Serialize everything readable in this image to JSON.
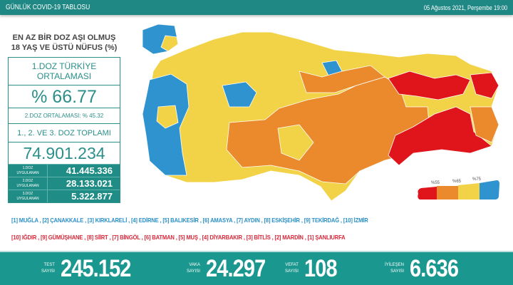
{
  "header": {
    "title": "GÜNLÜK COVID-19 TABLOSU",
    "date": "05 Ağustos 2021, Perşembe 19:00"
  },
  "left": {
    "title_line1": "EN AZ BİR DOZ AŞI OLMUŞ",
    "title_line2": "18 YAŞ VE ÜSTÜ NÜFUS (%)",
    "avg_label_line1": "1.DOZ TÜRKİYE",
    "avg_label_line2": "ORTALAMASI",
    "avg_value": "% 66.77",
    "second_avg": "2.DOZ ORTALAMASI: % 45.32",
    "total_label": "1., 2. VE 3. DOZ TOPLAMI",
    "total_value": "74.901.234",
    "doses": [
      {
        "label1": "1.DOZ",
        "label2": "UYGULANAN",
        "value": "41.445.336"
      },
      {
        "label1": "2.DOZ",
        "label2": "UYGULANAN",
        "value": "28.133.021"
      },
      {
        "label1": "3.DOZ",
        "label2": "UYGULANAN",
        "value": "5.322.877"
      }
    ]
  },
  "legend": {
    "thresholds": [
      "%55",
      "%65",
      "%75"
    ],
    "colors": [
      "#e0151b",
      "#ea8a2c",
      "#f2d347",
      "#2f93cf"
    ]
  },
  "lists": {
    "top": "[1] MUĞLA , [2] ÇANAKKALE , [3] KIRKLARELİ , [4] EDİRNE , [5] BALIKESİR , [6] AMASYA , [7] AYDIN , [8] ESKİŞEHİR , [9] TEKİRDAĞ , [10] İZMİR",
    "bottom": "[10] IĞDIR , [9] GÜMÜŞHANE , [8] SİİRT , [7] BİNGÖL , [6] BATMAN , [5] MUŞ , [4] DİYARBAKIR , [3] BİTLİS , [2] MARDİN , [1] ŞANLIURFA"
  },
  "stats": [
    {
      "label1": "TEST",
      "label2": "SAYISI",
      "value": "245.152"
    },
    {
      "label1": "VAKA",
      "label2": "SAYISI",
      "value": "24.297"
    },
    {
      "label1": "VEFAT",
      "label2": "SAYISI",
      "value": "108"
    },
    {
      "label1": "İYİLEŞEN",
      "label2": "SAYISI",
      "value": "6.636"
    }
  ]
}
